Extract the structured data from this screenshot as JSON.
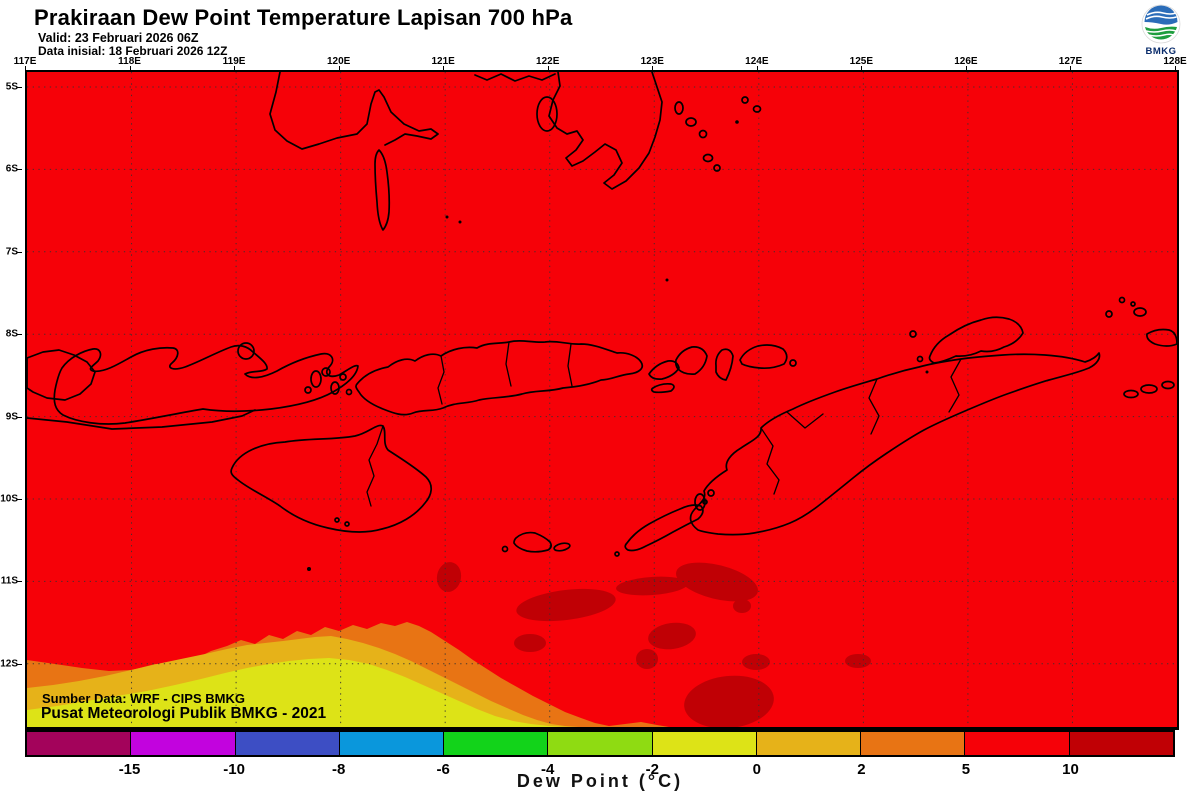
{
  "header": {
    "title": "Prakiraan Dew Point Temperature Lapisan 700 hPa",
    "valid": "Valid: 23 Februari 2026 06Z",
    "init": "Data inisial: 18 Februari 2026 12Z",
    "logo_text": "BMKG"
  },
  "map": {
    "top_axis": [
      "117E",
      "118E",
      "119E",
      "120E",
      "121E",
      "122E",
      "123E",
      "124E",
      "125E",
      "126E",
      "127E",
      "128E"
    ],
    "left_axis": [
      "5S",
      "6S",
      "7S",
      "8S",
      "9S",
      "10S",
      "11S",
      "12S"
    ],
    "credits": {
      "line1": "Sumber Data: WRF - CIPS BMKG",
      "line2": "Pusat Meteorologi Publik BMKG -  2021"
    }
  },
  "colorbar": {
    "title": "Dew Point (°C)",
    "ticks": [
      "-15",
      "-10",
      "-8",
      "-6",
      "-4",
      "-2",
      "0",
      "2",
      "5",
      "10"
    ],
    "segment_colors": [
      "#A3035B",
      "#C203DE",
      "#3D4EC4",
      "#0A97DC",
      "#12D31A",
      "#8FDB12",
      "#DDE317",
      "#E6B219",
      "#E87414",
      "#F60108",
      "#C00005"
    ]
  },
  "colors": {
    "field": "#F60108",
    "high": "#C00005",
    "band_orange": "#E87414",
    "band_gold": "#E6B219",
    "band_yellow": "#DDE317",
    "coast": "#000000",
    "grid": "#333333",
    "logo_blue": "#2B6CB8",
    "logo_green": "#1E9E3E",
    "logo_navy": "#0A2C6B"
  }
}
